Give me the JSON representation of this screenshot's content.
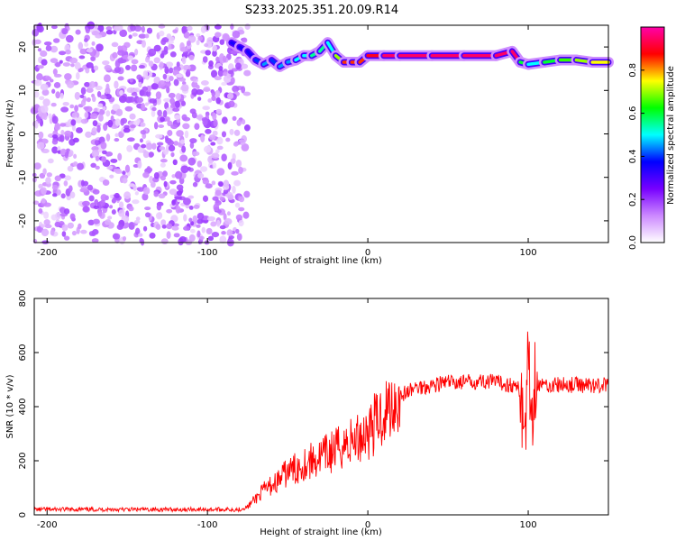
{
  "title": "S233.2025.351.20.09.R14",
  "chart_data": [
    {
      "type": "heatmap",
      "xlabel": "Height of straight line (km)",
      "ylabel": "Frequency (Hz)",
      "xlim": [
        -208,
        150
      ],
      "ylim": [
        -25,
        25
      ],
      "xticks": [
        -200,
        -100,
        0,
        100
      ],
      "yticks": [
        -20,
        -10,
        0,
        10,
        20
      ],
      "colorbar": {
        "label": "Normalized spectral amplitude",
        "range": [
          0,
          1
        ],
        "ticks": [
          "0.0",
          "0.2",
          "0.4",
          "0.6",
          "0.8"
        ],
        "tick_values": [
          0,
          0.2,
          0.4,
          0.6,
          0.8
        ],
        "colors": [
          "#ffffff",
          "#cc88ff",
          "#7700ff",
          "#0000ff",
          "#00ffff",
          "#00ff00",
          "#ffff00",
          "#ff0000",
          "#ff00aa"
        ]
      },
      "noise_region_x": [
        -208,
        -75
      ],
      "signal_track": {
        "x": [
          -85,
          -80,
          -75,
          -70,
          -65,
          -60,
          -55,
          -50,
          -45,
          -40,
          -35,
          -30,
          -25,
          -20,
          -15,
          -10,
          -5,
          0,
          10,
          20,
          40,
          60,
          80,
          90,
          95,
          100,
          110,
          120,
          130,
          140,
          150
        ],
        "y": [
          21,
          20,
          19,
          17,
          16,
          17,
          15.5,
          16.5,
          17,
          18,
          18,
          19,
          21,
          18,
          16.5,
          16.5,
          16.5,
          18,
          18,
          18,
          18,
          18,
          18,
          19,
          16.5,
          16,
          16.5,
          17,
          17,
          16.5,
          16.5
        ],
        "amplitude": [
          0.35,
          0.35,
          0.35,
          0.4,
          0.45,
          0.4,
          0.45,
          0.45,
          0.5,
          0.5,
          0.55,
          0.55,
          0.5,
          0.7,
          0.85,
          0.85,
          0.85,
          0.9,
          0.95,
          0.95,
          0.95,
          0.95,
          0.95,
          0.95,
          0.6,
          0.5,
          0.6,
          0.65,
          0.7,
          0.75,
          0.75
        ]
      }
    },
    {
      "type": "line",
      "xlabel": "Height of straight line (km)",
      "ylabel": "SNR (10 * v/v)",
      "xlim": [
        -208,
        150
      ],
      "ylim": [
        0,
        800
      ],
      "xticks": [
        -200,
        -100,
        0,
        100
      ],
      "yticks": [
        0,
        200,
        400,
        600,
        800
      ],
      "line_color": "#ff0000",
      "series": [
        {
          "x": [
            -208,
            -180,
            -150,
            -120,
            -100,
            -80,
            -75,
            -70,
            -65,
            -60,
            -55,
            -50,
            -45,
            -40,
            -35,
            -30,
            -25,
            -20,
            -15,
            -10,
            -5,
            0,
            5,
            10,
            15,
            20,
            25,
            30,
            40,
            50,
            60,
            70,
            80,
            90,
            95,
            98,
            100,
            102,
            104,
            106,
            110,
            120,
            130,
            140,
            150
          ],
          "y": [
            20,
            20,
            20,
            20,
            20,
            20,
            30,
            60,
            90,
            110,
            130,
            160,
            170,
            190,
            200,
            210,
            225,
            240,
            260,
            270,
            290,
            310,
            340,
            380,
            410,
            440,
            455,
            470,
            480,
            490,
            490,
            495,
            490,
            480,
            460,
            300,
            600,
            340,
            520,
            480,
            480,
            480,
            480,
            480,
            480
          ]
        }
      ]
    }
  ]
}
